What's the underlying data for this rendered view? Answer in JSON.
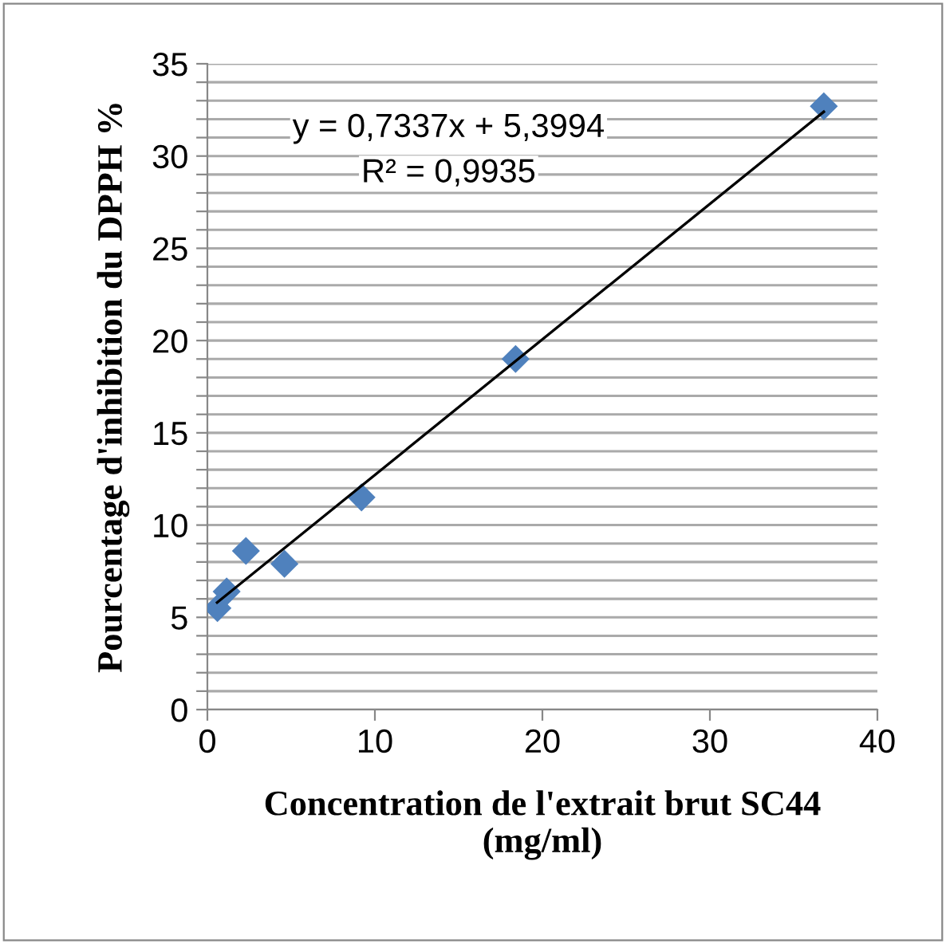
{
  "chart_data": {
    "type": "scatter",
    "xlabel": "Concentration de l'extrait brut SC44\n(mg/ml)",
    "ylabel": "Pourcentage d'inhibition du DPPH %",
    "series": [
      {
        "color": "#4f81bd",
        "marker": "diamond",
        "x": [
          0.6,
          1.15,
          2.3,
          4.6,
          9.2,
          18.4,
          36.8
        ],
        "values": [
          5.5,
          6.4,
          8.6,
          7.9,
          11.5,
          19.0,
          32.7
        ]
      },
      {
        "type": "line",
        "color": "#000000",
        "marker": "none",
        "x": [
          0.58,
          36.8
        ],
        "values": [
          5.8,
          32.4
        ]
      }
    ],
    "annotations": [
      "y = 0,7337x + 5,3994",
      "R² = 0,9935"
    ],
    "xlim": [
      0,
      40
    ],
    "xticks": [
      0,
      10,
      20,
      30,
      40
    ],
    "ylim": [
      0,
      35
    ],
    "yticks": [
      0,
      {
        "value": 1,
        "label": null
      },
      {
        "value": 2,
        "label": null
      },
      {
        "value": 3,
        "label": null
      },
      {
        "value": 4,
        "label": null
      },
      5,
      {
        "value": 6,
        "label": null
      },
      {
        "value": 7,
        "label": null
      },
      {
        "value": 8,
        "label": null
      },
      {
        "value": 9,
        "label": null
      },
      10,
      {
        "value": 11,
        "label": null
      },
      {
        "value": 12,
        "label": null
      },
      {
        "value": 13,
        "label": null
      },
      {
        "value": 14,
        "label": null
      },
      15,
      {
        "value": 16,
        "label": null
      },
      {
        "value": 17,
        "label": null
      },
      {
        "value": 18,
        "label": null
      },
      {
        "value": 19,
        "label": null
      },
      20,
      {
        "value": 21,
        "label": null
      },
      {
        "value": 22,
        "label": null
      },
      {
        "value": 23,
        "label": null
      },
      {
        "value": 24,
        "label": null
      },
      25,
      {
        "value": 26,
        "label": null
      },
      {
        "value": 27,
        "label": null
      },
      {
        "value": 28,
        "label": null
      },
      {
        "value": 29,
        "label": null
      },
      30,
      {
        "value": 31,
        "label": null
      },
      {
        "value": 32,
        "label": null
      },
      {
        "value": 33,
        "label": null
      },
      {
        "value": 34,
        "label": null
      },
      35
    ],
    "grid": "y",
    "legend": false
  }
}
